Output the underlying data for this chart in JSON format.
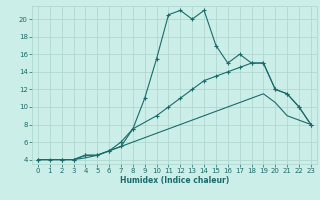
{
  "xlabel": "Humidex (Indice chaleur)",
  "bg_color": "#cceee8",
  "grid_color": "#aad4cc",
  "line_color": "#1a6b6b",
  "xlim": [
    -0.5,
    23.5
  ],
  "ylim": [
    3.5,
    21.5
  ],
  "yticks": [
    4,
    6,
    8,
    10,
    12,
    14,
    16,
    18,
    20
  ],
  "xticks": [
    0,
    1,
    2,
    3,
    4,
    5,
    6,
    7,
    8,
    9,
    10,
    11,
    12,
    13,
    14,
    15,
    16,
    17,
    18,
    19,
    20,
    21,
    22,
    23
  ],
  "line1_x": [
    0,
    1,
    2,
    3,
    4,
    5,
    6,
    7,
    8,
    9,
    10,
    11,
    12,
    13,
    14,
    15,
    16,
    17,
    18,
    19,
    20,
    21,
    22,
    23
  ],
  "line1_y": [
    4,
    4,
    4,
    4,
    4.5,
    4.5,
    5,
    5.5,
    7.5,
    11,
    15.5,
    20.5,
    21,
    20,
    21,
    17,
    15,
    16,
    15,
    15,
    12,
    11.5,
    10,
    8
  ],
  "line2_x": [
    0,
    2,
    3,
    4,
    5,
    6,
    7,
    8,
    10,
    11,
    12,
    13,
    14,
    15,
    16,
    17,
    18,
    19,
    20,
    21,
    22,
    23
  ],
  "line2_y": [
    4,
    4,
    4,
    4.5,
    4.5,
    5,
    6,
    7.5,
    9,
    10,
    11,
    12,
    13,
    13.5,
    14,
    14.5,
    15,
    15,
    12,
    11.5,
    10,
    8
  ],
  "line3_x": [
    0,
    2,
    3,
    4,
    5,
    6,
    7,
    8,
    9,
    10,
    11,
    12,
    13,
    14,
    15,
    16,
    17,
    18,
    19,
    20,
    21,
    22,
    23
  ],
  "line3_y": [
    4,
    4,
    4,
    4.2,
    4.5,
    5,
    5.5,
    6,
    6.5,
    7,
    7.5,
    8,
    8.5,
    9,
    9.5,
    10,
    10.5,
    11,
    11.5,
    10.5,
    9,
    8.5,
    8
  ]
}
